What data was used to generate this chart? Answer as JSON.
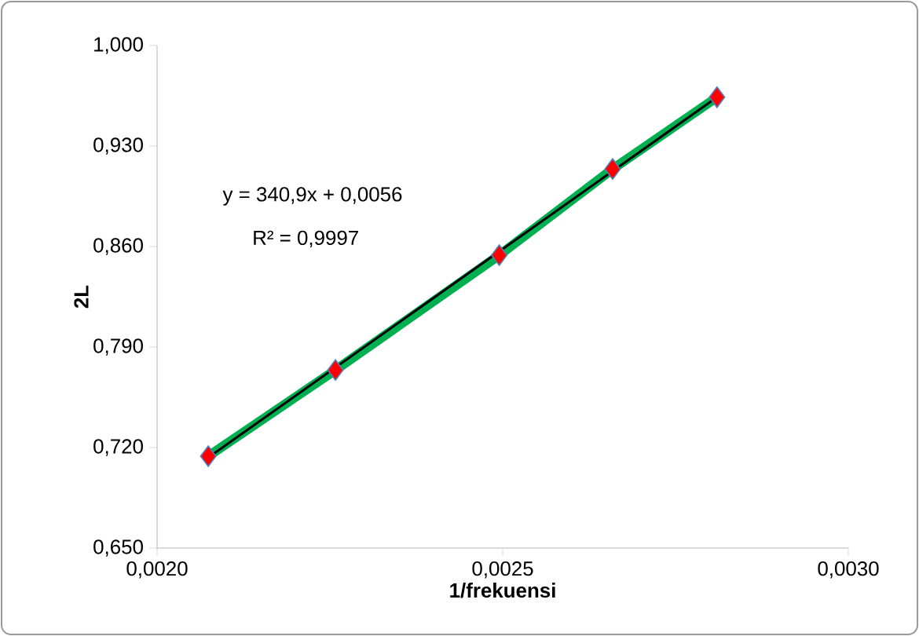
{
  "chart_data": {
    "type": "scatter",
    "xlabel": "1/frekuensi",
    "ylabel": "2L",
    "x": [
      0.002074,
      0.002258,
      0.002495,
      0.002659,
      0.00281
    ],
    "xlim": [
      0.002,
      0.003
    ],
    "xticks": [
      {
        "value": 0.002,
        "label": "0,0020"
      },
      {
        "value": 0.0025,
        "label": "0,0025"
      },
      {
        "value": 0.003,
        "label": "0,0030"
      }
    ],
    "ylim": [
      0.65,
      1.0
    ],
    "yticks": [
      {
        "value": 0.65,
        "label": "0,650"
      },
      {
        "value": 0.72,
        "label": "0,720"
      },
      {
        "value": 0.79,
        "label": "0,790"
      },
      {
        "value": 0.86,
        "label": "0,860"
      },
      {
        "value": 0.93,
        "label": "0,930"
      },
      {
        "value": 1.0,
        "label": "1,000"
      }
    ],
    "annotations": [
      "y = 340,9x + 0,0056",
      "R² = 0,9997"
    ],
    "series": [
      {
        "type": "line",
        "color": "#00b050",
        "marker": "none",
        "values": [
          0.714,
          0.774,
          0.854,
          0.914,
          0.964
        ]
      },
      {
        "color": "#ff0000",
        "marker": "diamond",
        "values": [
          0.714,
          0.774,
          0.854,
          0.914,
          0.964
        ]
      },
      {
        "type": "line",
        "color": "#000000",
        "marker": "none",
        "x": [
          0.002074,
          0.00281
        ],
        "values": [
          0.713,
          0.964
        ]
      }
    ],
    "grid": false
  }
}
